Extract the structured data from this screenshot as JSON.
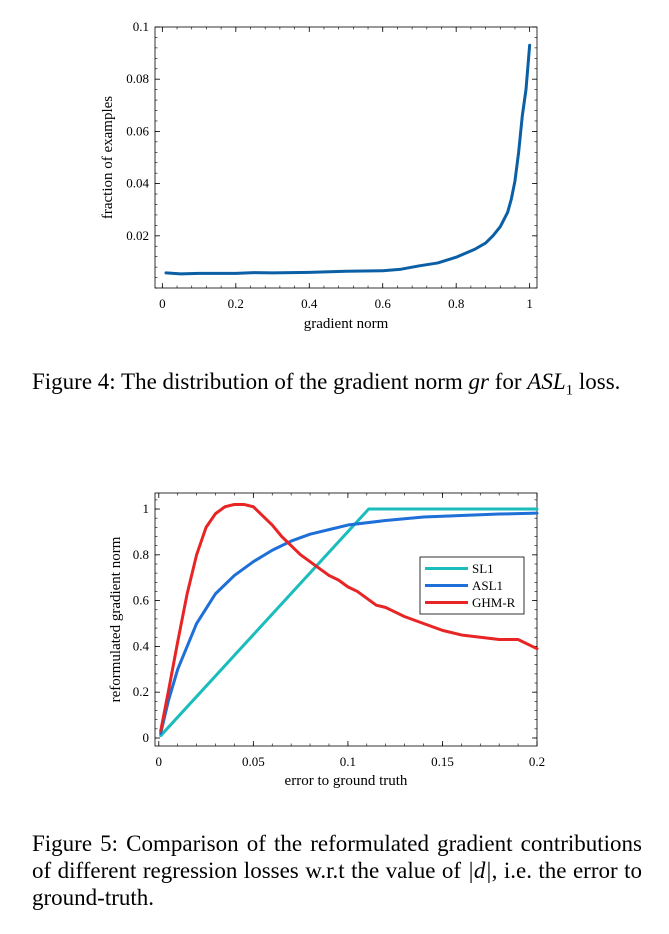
{
  "captions": {
    "fig4": {
      "prefix": "Figure 4: The distribution of the gradient norm ",
      "var": "gr",
      "mid": " for ",
      "loss_name": "ASL",
      "loss_sub": "1",
      "suffix": " loss."
    },
    "fig5": {
      "prefix": "Figure 5: Comparison of the reformulated gradient contributions of different regression losses w.r.t the value of ",
      "var": "|d|",
      "suffix": ", i.e. the error to ground-truth."
    }
  },
  "chart_data": [
    {
      "type": "line",
      "xlabel": "gradient norm",
      "ylabel": "fraction of examples",
      "xlim": [
        -0.02,
        1.02
      ],
      "ylim": [
        0.0,
        0.1
      ],
      "xticks": [
        0,
        0.2,
        0.4,
        0.6,
        0.8,
        1
      ],
      "xtick_labels": [
        "0",
        "0.2",
        "0.4",
        "0.6",
        "0.8",
        "1"
      ],
      "yticks": [
        0.02,
        0.04,
        0.06,
        0.08,
        0.1
      ],
      "ytick_labels": [
        "0.02",
        "0.04",
        "0.06",
        "0.08",
        "0.1"
      ],
      "grid": false,
      "series": [
        {
          "color": "#0b5fa5",
          "x": [
            0.01,
            0.05,
            0.1,
            0.2,
            0.25,
            0.3,
            0.4,
            0.5,
            0.6,
            0.65,
            0.7,
            0.75,
            0.8,
            0.85,
            0.88,
            0.9,
            0.92,
            0.94,
            0.95,
            0.96,
            0.97,
            0.98,
            0.99,
            1.0
          ],
          "y": [
            0.0058,
            0.0054,
            0.0056,
            0.0056,
            0.0059,
            0.0058,
            0.006,
            0.0064,
            0.0066,
            0.0072,
            0.0085,
            0.0096,
            0.0118,
            0.0148,
            0.0172,
            0.02,
            0.0235,
            0.029,
            0.034,
            0.041,
            0.052,
            0.066,
            0.076,
            0.093
          ]
        }
      ]
    },
    {
      "type": "line",
      "xlabel": "error to ground truth",
      "ylabel": "reformulated gradient norm",
      "xlim": [
        -0.002,
        0.2
      ],
      "ylim": [
        -0.035,
        1.07
      ],
      "xticks": [
        0,
        0.05,
        0.1,
        0.15,
        0.2
      ],
      "xtick_labels": [
        "0",
        "0.05",
        "0.1",
        "0.15",
        "0.2"
      ],
      "yticks": [
        0,
        0.2,
        0.4,
        0.6,
        0.8,
        1
      ],
      "ytick_labels": [
        "0",
        "0.2",
        "0.4",
        "0.6",
        "0.8",
        "1"
      ],
      "grid": false,
      "legend": "upper-right (inside)",
      "series": [
        {
          "name": "SL1",
          "color": "#1abcbc",
          "x": [
            0.001,
            0.111,
            0.2
          ],
          "y": [
            0.01,
            1.0,
            1.0
          ]
        },
        {
          "name": "ASL1",
          "color": "#1e6fd8",
          "x": [
            0.001,
            0.005,
            0.01,
            0.02,
            0.03,
            0.04,
            0.05,
            0.06,
            0.07,
            0.08,
            0.09,
            0.1,
            0.12,
            0.14,
            0.16,
            0.18,
            0.2
          ],
          "y": [
            0.02,
            0.16,
            0.3,
            0.5,
            0.63,
            0.71,
            0.77,
            0.82,
            0.86,
            0.89,
            0.91,
            0.93,
            0.95,
            0.965,
            0.972,
            0.978,
            0.982
          ]
        },
        {
          "name": "GHM-R",
          "color": "#e82525",
          "x": [
            0.001,
            0.005,
            0.01,
            0.015,
            0.02,
            0.025,
            0.03,
            0.035,
            0.04,
            0.045,
            0.05,
            0.055,
            0.06,
            0.065,
            0.07,
            0.075,
            0.08,
            0.085,
            0.09,
            0.095,
            0.1,
            0.105,
            0.11,
            0.115,
            0.12,
            0.125,
            0.13,
            0.14,
            0.15,
            0.16,
            0.17,
            0.18,
            0.19,
            0.2
          ],
          "y": [
            0.03,
            0.2,
            0.42,
            0.63,
            0.8,
            0.92,
            0.98,
            1.01,
            1.02,
            1.02,
            1.01,
            0.97,
            0.93,
            0.88,
            0.84,
            0.8,
            0.77,
            0.74,
            0.71,
            0.69,
            0.66,
            0.64,
            0.61,
            0.58,
            0.57,
            0.55,
            0.53,
            0.5,
            0.47,
            0.45,
            0.44,
            0.43,
            0.43,
            0.39
          ]
        }
      ]
    }
  ]
}
